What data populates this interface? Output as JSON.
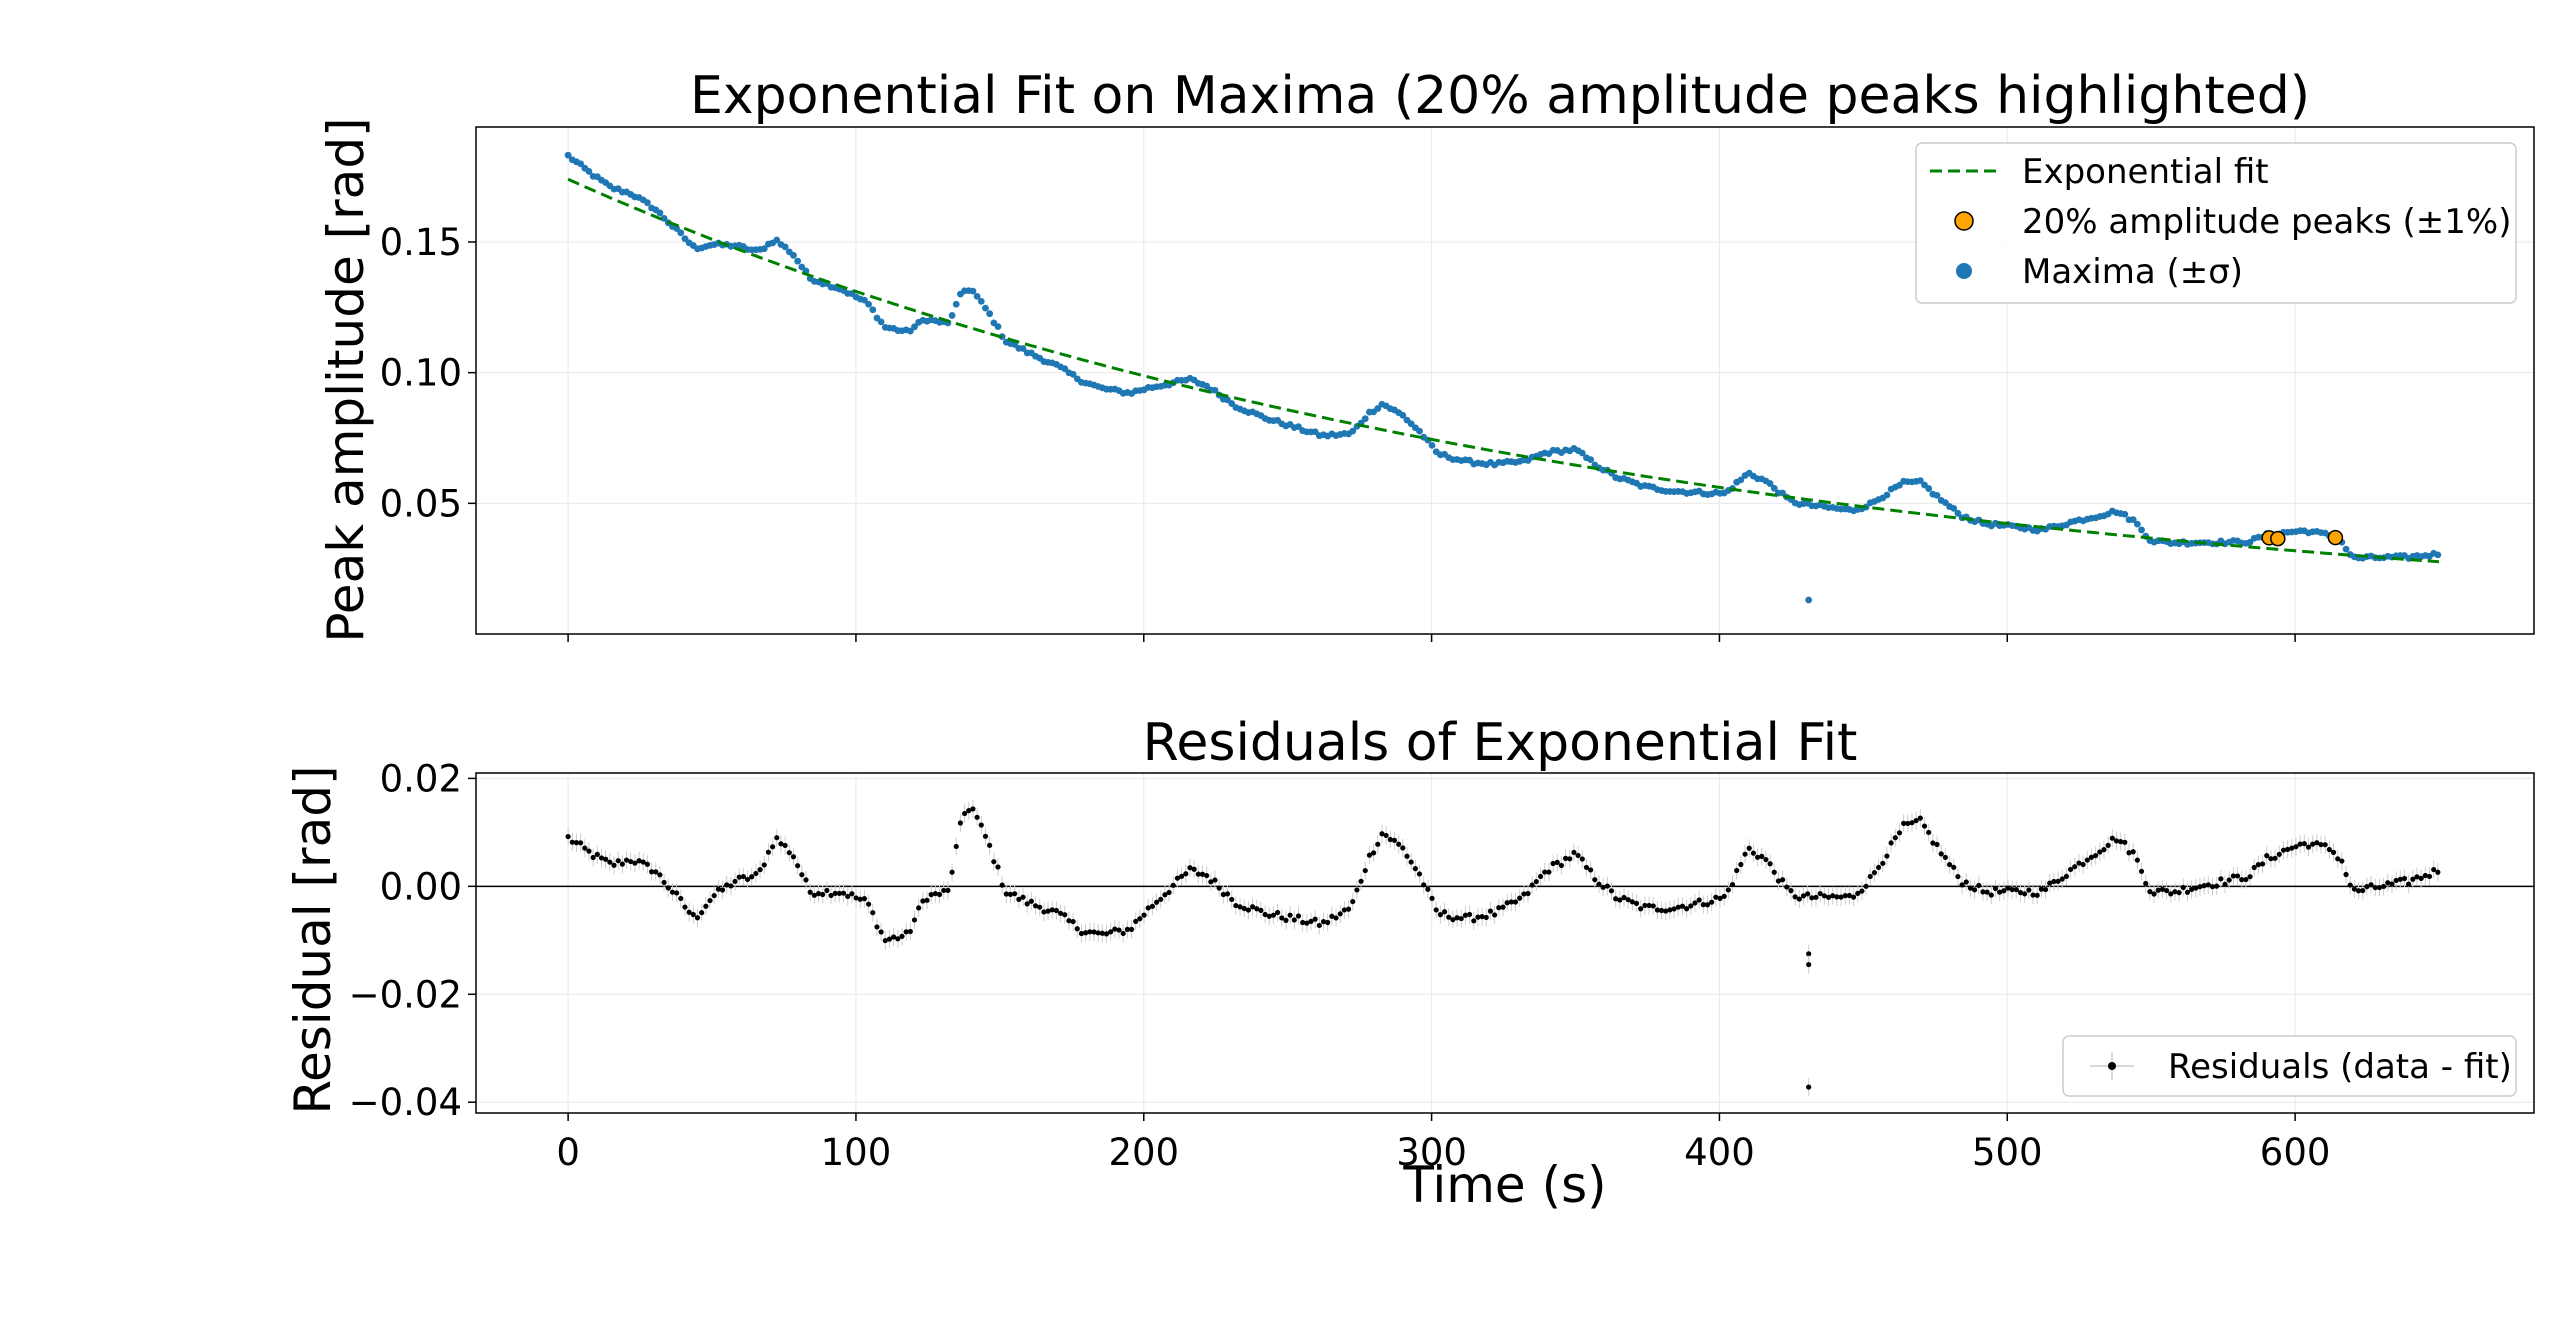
{
  "colors": {
    "maxima": "#1f77b4",
    "fit": "#008000",
    "highlight": "#ffa500",
    "residual": "#000000",
    "errorbar": "#cccccc",
    "grid": "#e8e8e8"
  },
  "chart_data": [
    {
      "type": "scatter",
      "title": "Exponential Fit on Maxima (20% amplitude peaks highlighted)",
      "xlabel": "",
      "ylabel": "Peak amplitude [rad]",
      "xlim": [
        -32,
        683
      ],
      "ylim": [
        0.0,
        0.194
      ],
      "x_ticks": [
        0,
        100,
        200,
        300,
        400,
        500,
        600
      ],
      "y_ticks": [
        0.05,
        0.1,
        0.15
      ],
      "y_tick_labels": [
        "0.05",
        "0.10",
        "0.15"
      ],
      "grid": true,
      "legend_position": "top-right",
      "legend": [
        "Exponential fit",
        "20% amplitude peaks (±1%)",
        "Maxima (±σ)"
      ],
      "series": [
        {
          "name": "Exponential fit",
          "kind": "line",
          "style": "dashed",
          "amplitude_at_0": 0.174,
          "decay_rate_per_s": 0.00283,
          "x_range": [
            0,
            650
          ]
        },
        {
          "name": "Maxima (±σ)",
          "kind": "scatter",
          "residual_key_points": [
            [
              0,
              0.009
            ],
            [
              8,
              0.006
            ],
            [
              15,
              0.004
            ],
            [
              22,
              0.005
            ],
            [
              30,
              0.003
            ],
            [
              38,
              -0.002
            ],
            [
              44,
              -0.006
            ],
            [
              50,
              -0.002
            ],
            [
              58,
              0.001
            ],
            [
              66,
              0.002
            ],
            [
              72,
              0.009
            ],
            [
              78,
              0.006
            ],
            [
              84,
              -0.001
            ],
            [
              95,
              -0.001
            ],
            [
              104,
              -0.003
            ],
            [
              110,
              -0.01
            ],
            [
              118,
              -0.009
            ],
            [
              124,
              -0.002
            ],
            [
              132,
              -0.001
            ],
            [
              137,
              0.013
            ],
            [
              140,
              0.015
            ],
            [
              146,
              0.008
            ],
            [
              152,
              -0.001
            ],
            [
              160,
              -0.003
            ],
            [
              170,
              -0.005
            ],
            [
              178,
              -0.008
            ],
            [
              185,
              -0.009
            ],
            [
              195,
              -0.008
            ],
            [
              202,
              -0.004
            ],
            [
              210,
              0.0
            ],
            [
              216,
              0.003
            ],
            [
              222,
              0.002
            ],
            [
              232,
              -0.003
            ],
            [
              242,
              -0.005
            ],
            [
              252,
              -0.006
            ],
            [
              262,
              -0.007
            ],
            [
              272,
              -0.004
            ],
            [
              278,
              0.005
            ],
            [
              283,
              0.01
            ],
            [
              290,
              0.007
            ],
            [
              296,
              0.002
            ],
            [
              302,
              -0.005
            ],
            [
              312,
              -0.006
            ],
            [
              322,
              -0.005
            ],
            [
              332,
              -0.002
            ],
            [
              340,
              0.003
            ],
            [
              350,
              0.006
            ],
            [
              356,
              0.002
            ],
            [
              364,
              -0.002
            ],
            [
              374,
              -0.004
            ],
            [
              384,
              -0.004
            ],
            [
              394,
              -0.003
            ],
            [
              402,
              -0.002
            ],
            [
              410,
              0.007
            ],
            [
              416,
              0.005
            ],
            [
              424,
              -0.001
            ],
            [
              428,
              -0.002
            ],
            [
              436,
              -0.002
            ],
            [
              446,
              -0.002
            ],
            [
              452,
              0.001
            ],
            [
              458,
              0.006
            ],
            [
              464,
              0.011
            ],
            [
              470,
              0.012
            ],
            [
              476,
              0.007
            ],
            [
              484,
              0.001
            ],
            [
              492,
              -0.001
            ],
            [
              500,
              -0.001
            ],
            [
              512,
              -0.001
            ],
            [
              522,
              0.003
            ],
            [
              530,
              0.006
            ],
            [
              538,
              0.009
            ],
            [
              544,
              0.006
            ],
            [
              550,
              -0.001
            ],
            [
              558,
              -0.001
            ],
            [
              566,
              0.0
            ],
            [
              576,
              0.001
            ],
            [
              584,
              0.002
            ],
            [
              590,
              0.005
            ],
            [
              598,
              0.007
            ],
            [
              604,
              0.008
            ],
            [
              612,
              0.007
            ],
            [
              616,
              0.005
            ],
            [
              620,
              -0.001
            ],
            [
              630,
              0.0
            ],
            [
              640,
              0.001
            ],
            [
              650,
              0.003
            ]
          ],
          "outliers": [
            [
              431,
              0.013
            ]
          ]
        },
        {
          "name": "20% amplitude peaks (±1%)",
          "kind": "scatter",
          "x": [
            591,
            594,
            614
          ],
          "y": [
            0.0368,
            0.0365,
            0.0369
          ]
        }
      ]
    },
    {
      "type": "scatter",
      "title": "Residuals of Exponential Fit",
      "xlabel": "Time (s)",
      "ylabel": "Residual [rad]",
      "xlim": [
        -32,
        683
      ],
      "ylim": [
        -0.042,
        0.021
      ],
      "x_ticks": [
        0,
        100,
        200,
        300,
        400,
        500,
        600
      ],
      "y_ticks": [
        0.02,
        0.0,
        -0.02,
        -0.04
      ],
      "y_tick_labels": [
        "0.02",
        "0.00",
        "−0.02",
        "−0.04"
      ],
      "zero_line": true,
      "grid": true,
      "legend_position": "lower-right",
      "legend": [
        "Residuals (data - fit)"
      ],
      "series": [
        {
          "name": "Residuals (data - fit)",
          "kind": "errorbar",
          "outliers": [
            [
              431,
              -0.0125
            ],
            [
              431,
              -0.0145
            ],
            [
              431,
              -0.0372
            ]
          ]
        }
      ]
    }
  ]
}
